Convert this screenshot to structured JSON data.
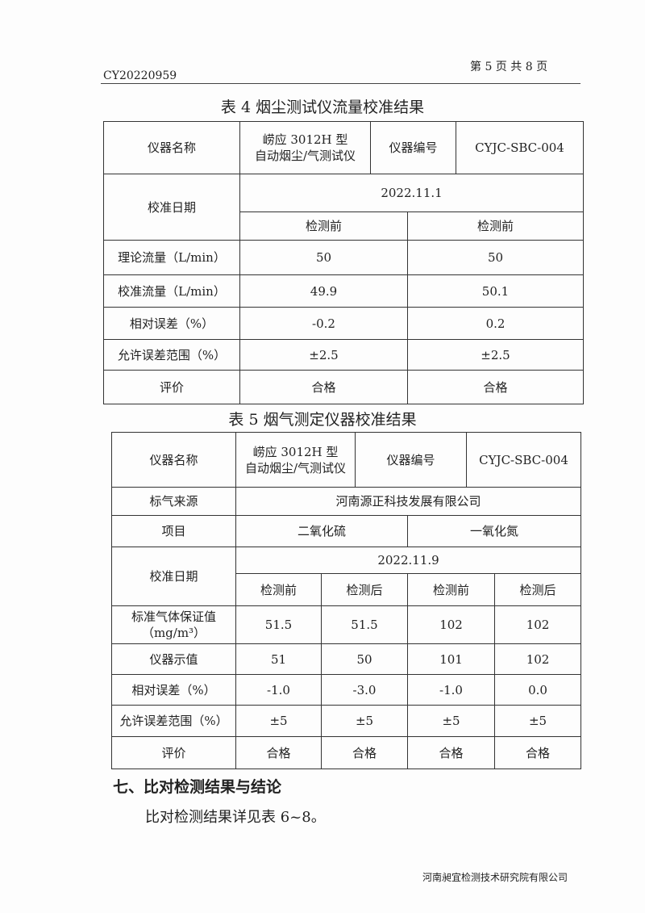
{
  "header": {
    "doc_no": "CY20220959",
    "page_info": "第 5 页  共 8 页"
  },
  "table4": {
    "title": "表 4  烟尘测试仪流量校准结果",
    "instrument_name_label": "仪器名称",
    "instrument_name_1": "崂应 3012H 型",
    "instrument_name_2": "自动烟尘/气测试仪",
    "instrument_no_label": "仪器编号",
    "instrument_no": "CYJC-SBC-004",
    "date_label": "校准日期",
    "date": "2022.11.1",
    "col1": "检测前",
    "col2": "检测前",
    "rows": [
      {
        "label": "理论流量（L/min）",
        "v1": "50",
        "v2": "50"
      },
      {
        "label": "校准流量（L/min）",
        "v1": "49.9",
        "v2": "50.1"
      },
      {
        "label": "相对误差（%）",
        "v1": "-0.2",
        "v2": "0.2"
      },
      {
        "label": "允许误差范围（%）",
        "v1": "±2.5",
        "v2": "±2.5"
      },
      {
        "label": "评价",
        "v1": "合格",
        "v2": "合格"
      }
    ]
  },
  "table5": {
    "title": "表 5  烟气测定仪器校准结果",
    "instrument_name_label": "仪器名称",
    "instrument_name_1": "崂应 3012H 型",
    "instrument_name_2": "自动烟尘/气测试仪",
    "instrument_no_label": "仪器编号",
    "instrument_no": "CYJC-SBC-004",
    "gas_source_label": "标气来源",
    "gas_source": "河南源正科技发展有限公司",
    "item_label": "项目",
    "item1": "二氧化硫",
    "item2": "一氧化氮",
    "date_label": "校准日期",
    "date": "2022.11.9",
    "cols": [
      "检测前",
      "检测后",
      "检测前",
      "检测后"
    ],
    "std_label_1": "标准气体保证值",
    "std_label_2": "（mg/m³）",
    "rows": [
      {
        "label": "",
        "values": [
          "51.5",
          "51.5",
          "102",
          "102"
        ]
      },
      {
        "label": "仪器示值",
        "values": [
          "51",
          "50",
          "101",
          "102"
        ]
      },
      {
        "label": "相对误差（%）",
        "values": [
          "-1.0",
          "-3.0",
          "-1.0",
          "0.0"
        ]
      },
      {
        "label": "允许误差范围（%）",
        "values": [
          "±5",
          "±5",
          "±5",
          "±5"
        ]
      },
      {
        "label": "评价",
        "values": [
          "合格",
          "合格",
          "合格",
          "合格"
        ]
      }
    ]
  },
  "section": {
    "heading": "七、比对检测结果与结论",
    "body": "比对检测结果详见表 6~8。"
  },
  "footer": {
    "company": "河南昶宜检测技术研究院有限公司"
  }
}
